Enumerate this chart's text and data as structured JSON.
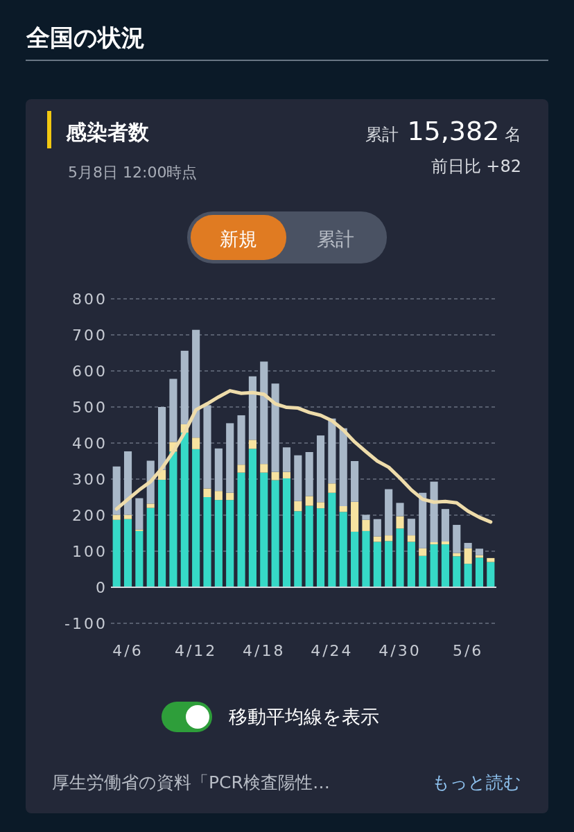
{
  "chart_data": {
    "type": "bar",
    "title": "感染者数",
    "subtitle": "5月8日 12:00時点",
    "annotations": [
      "全国の状況",
      "累計 15,382 名",
      "前日比 +82",
      "新規",
      "累計",
      "移動平均線を表示",
      "厚生労働省の資料「PCR検査陽性…",
      "もっと読む"
    ],
    "categories": [
      null,
      "4/6",
      null,
      null,
      null,
      null,
      null,
      "4/12",
      null,
      null,
      null,
      null,
      null,
      "4/18",
      null,
      null,
      null,
      null,
      null,
      "4/24",
      null,
      null,
      null,
      null,
      null,
      "4/30",
      null,
      null,
      null,
      null,
      null,
      "5/6",
      null,
      null
    ],
    "stacked": true,
    "series": [
      {
        "color": "#36d9c7",
        "values": [
          187,
          189,
          156,
          220,
          298,
          376,
          429,
          383,
          250,
          242,
          242,
          318,
          384,
          318,
          297,
          302,
          211,
          226,
          219,
          262,
          209,
          154,
          156,
          126,
          128,
          163,
          126,
          87,
          119,
          119,
          86,
          65,
          82,
          70
        ]
      },
      {
        "color": "#f7e3a0",
        "values": [
          14,
          12,
          4,
          12,
          28,
          27,
          23,
          32,
          24,
          25,
          20,
          22,
          25,
          24,
          23,
          18,
          28,
          27,
          17,
          26,
          16,
          83,
          31,
          15,
          16,
          34,
          18,
          21,
          6,
          8,
          9,
          43,
          7,
          11
        ]
      },
      {
        "color": "#a9b8c8",
        "values": [
          134,
          176,
          87,
          119,
          174,
          175,
          204,
          299,
          231,
          118,
          193,
          137,
          176,
          284,
          245,
          68,
          127,
          122,
          185,
          180,
          216,
          113,
          14,
          48,
          128,
          37,
          46,
          154,
          168,
          90,
          78,
          15,
          18,
          null
        ]
      },
      {
        "type": "line",
        "color": "#eedcaa",
        "values": [
          217,
          244,
          270,
          293,
          330,
          376,
          429,
          492,
          509,
          528,
          545,
          538,
          540,
          535,
          509,
          499,
          497,
          485,
          477,
          462,
          436,
          403,
          376,
          350,
          333,
          303,
          270,
          244,
          236,
          238,
          234,
          211,
          194,
          181
        ]
      }
    ],
    "ylim": [
      -100,
      800
    ],
    "yticks": [
      -100,
      0,
      100,
      200,
      300,
      400,
      500,
      600,
      700,
      800
    ],
    "grid": "y",
    "marker": "none",
    "line_style": "solid"
  }
}
